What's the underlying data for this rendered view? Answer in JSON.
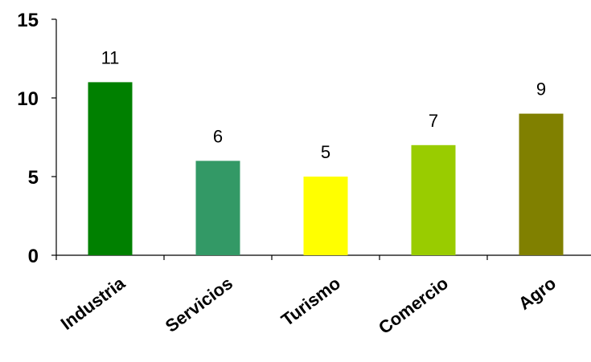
{
  "chart_data": {
    "type": "bar",
    "categories": [
      "Industria",
      "Servicios",
      "Turismo",
      "Comercio",
      "Agro"
    ],
    "values": [
      11,
      6,
      5,
      7,
      9
    ],
    "colors": [
      "#008000",
      "#339966",
      "#ffff00",
      "#99cc00",
      "#808000"
    ],
    "ylim": [
      0,
      15
    ],
    "yticks": [
      0,
      5,
      10,
      15
    ],
    "title": "",
    "xlabel": "",
    "ylabel": "",
    "grid": false,
    "legend": "none"
  }
}
